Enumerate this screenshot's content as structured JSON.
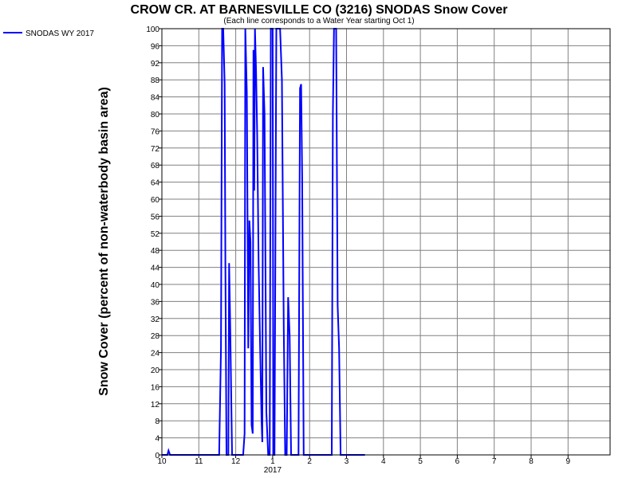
{
  "chart_data": {
    "type": "line",
    "title": "CROW CR. AT BARNESVILLE CO (3216) SNODAS Snow Cover",
    "subtitle": "(Each line corresponds to a Water Year starting Oct 1)",
    "ylabel": "Snow Cover (percent of non-waterbody basin area)",
    "xlabel": "",
    "ylim": [
      0,
      100
    ],
    "y_ticks": [
      0,
      4,
      8,
      12,
      16,
      20,
      24,
      28,
      32,
      36,
      40,
      44,
      48,
      52,
      56,
      60,
      64,
      68,
      72,
      76,
      80,
      84,
      88,
      92,
      96,
      100
    ],
    "x_ticks": [
      {
        "label": "10",
        "month": 0
      },
      {
        "label": "11",
        "month": 1
      },
      {
        "label": "12",
        "month": 2
      },
      {
        "label": "1",
        "month": 3,
        "sublabel": "2017"
      },
      {
        "label": "2",
        "month": 4
      },
      {
        "label": "3",
        "month": 5
      },
      {
        "label": "4",
        "month": 6
      },
      {
        "label": "5",
        "month": 7
      },
      {
        "label": "6",
        "month": 8
      },
      {
        "label": "7",
        "month": 9
      },
      {
        "label": "8",
        "month": 10
      },
      {
        "label": "9",
        "month": 11
      }
    ],
    "grid": true,
    "legend_position": "top-left-outside",
    "colors": {
      "series": "#0000ff",
      "grid": "#808080",
      "axis": "#000000"
    },
    "series": [
      {
        "name": "SNODAS WY 2017",
        "points": [
          [
            0.0,
            0
          ],
          [
            0.15,
            0
          ],
          [
            0.18,
            1
          ],
          [
            0.22,
            0
          ],
          [
            1.55,
            0
          ],
          [
            1.6,
            25
          ],
          [
            1.63,
            100
          ],
          [
            1.66,
            100
          ],
          [
            1.7,
            87
          ],
          [
            1.72,
            45
          ],
          [
            1.75,
            0
          ],
          [
            1.8,
            0
          ],
          [
            1.82,
            45
          ],
          [
            1.85,
            30
          ],
          [
            1.9,
            0
          ],
          [
            2.2,
            0
          ],
          [
            2.24,
            5
          ],
          [
            2.26,
            100
          ],
          [
            2.3,
            85
          ],
          [
            2.34,
            25
          ],
          [
            2.37,
            55
          ],
          [
            2.4,
            50
          ],
          [
            2.43,
            7
          ],
          [
            2.46,
            5
          ],
          [
            2.48,
            95
          ],
          [
            2.5,
            62
          ],
          [
            2.52,
            100
          ],
          [
            2.55,
            90
          ],
          [
            2.58,
            75
          ],
          [
            2.62,
            45
          ],
          [
            2.66,
            25
          ],
          [
            2.7,
            8
          ],
          [
            2.72,
            3
          ],
          [
            2.74,
            91
          ],
          [
            2.78,
            80
          ],
          [
            2.83,
            10
          ],
          [
            2.88,
            0
          ],
          [
            2.92,
            0
          ],
          [
            2.95,
            100
          ],
          [
            3.0,
            100
          ],
          [
            3.02,
            0
          ],
          [
            3.05,
            0
          ],
          [
            3.1,
            100
          ],
          [
            3.2,
            100
          ],
          [
            3.25,
            88
          ],
          [
            3.3,
            30
          ],
          [
            3.34,
            0
          ],
          [
            3.38,
            0
          ],
          [
            3.42,
            37
          ],
          [
            3.46,
            28
          ],
          [
            3.5,
            0
          ],
          [
            3.7,
            0
          ],
          [
            3.74,
            86
          ],
          [
            3.77,
            87
          ],
          [
            3.8,
            65
          ],
          [
            3.84,
            0
          ],
          [
            4.6,
            0
          ],
          [
            4.63,
            80
          ],
          [
            4.66,
            100
          ],
          [
            4.72,
            100
          ],
          [
            4.76,
            35
          ],
          [
            4.8,
            25
          ],
          [
            4.84,
            0
          ],
          [
            5.5,
            0
          ]
        ]
      }
    ]
  }
}
